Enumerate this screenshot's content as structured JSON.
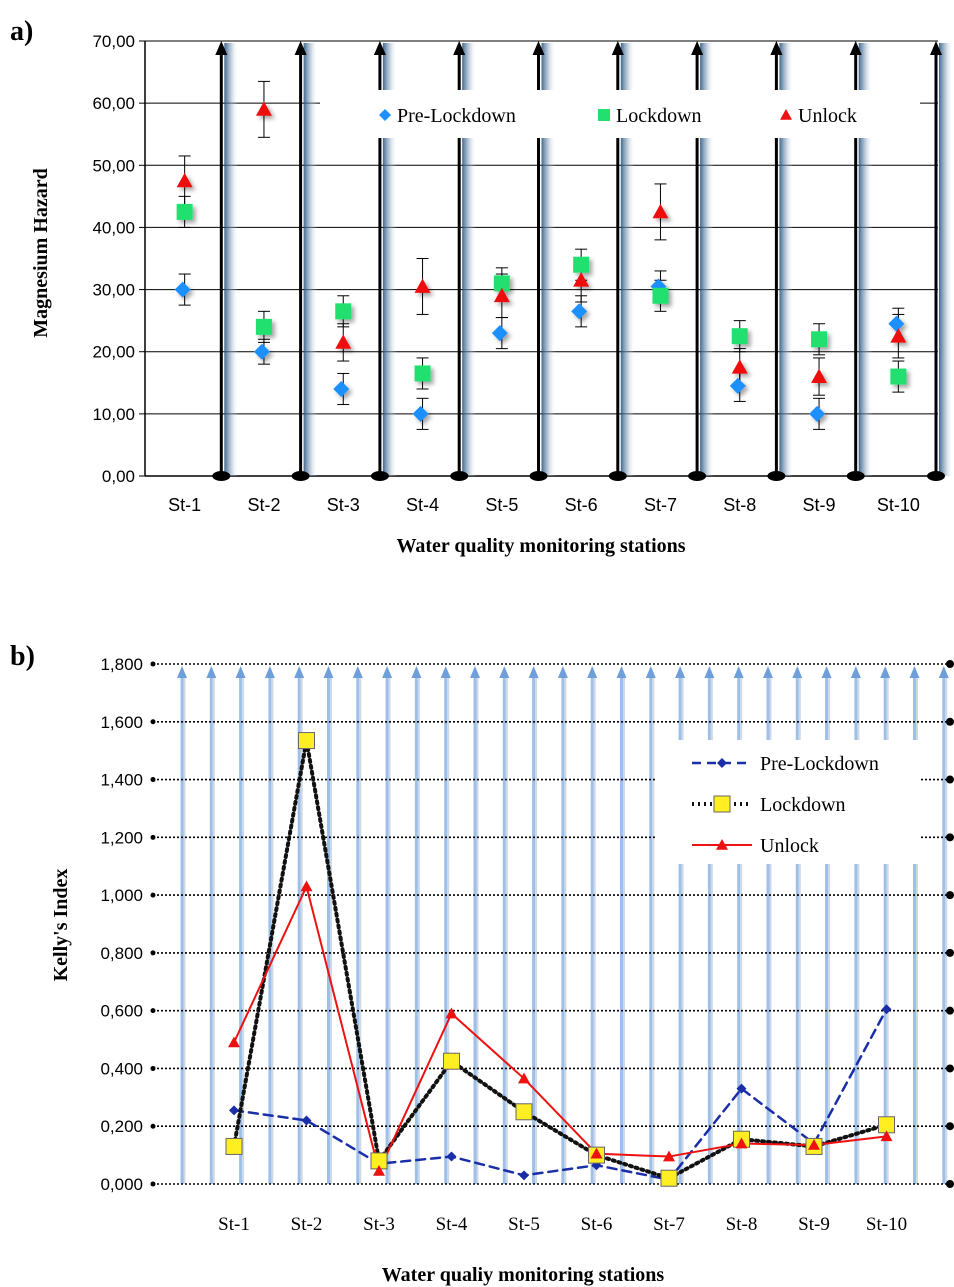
{
  "chart_data": [
    {
      "panel_label": "a)",
      "type": "scatter",
      "categories": [
        "St-1",
        "St-2",
        "St-3",
        "St-4",
        "St-5",
        "St-6",
        "St-7",
        "St-8",
        "St-9",
        "St-10"
      ],
      "series": [
        {
          "name": "Pre-Lockdown",
          "values": [
            30.0,
            20.0,
            14.0,
            10.0,
            23.0,
            26.5,
            30.5,
            14.5,
            10.0,
            24.5
          ],
          "errors": [
            2.5,
            2.0,
            2.5,
            2.5,
            2.5,
            2.5,
            2.5,
            2.5,
            2.5,
            2.5
          ],
          "color": "#1e90ff",
          "marker": "diamond"
        },
        {
          "name": "Lockdown",
          "values": [
            42.5,
            24.0,
            26.5,
            16.5,
            31.0,
            34.0,
            29.0,
            22.5,
            22.0,
            16.0
          ],
          "errors": [
            2.5,
            2.5,
            2.5,
            2.5,
            2.5,
            2.5,
            2.5,
            2.5,
            2.5,
            2.5
          ],
          "color": "#22e070",
          "marker": "square"
        },
        {
          "name": "Unlock",
          "values": [
            47.5,
            59.0,
            21.5,
            30.5,
            29.0,
            31.5,
            42.5,
            17.5,
            16.0,
            22.5
          ],
          "errors": [
            4.0,
            4.5,
            3.0,
            4.5,
            3.5,
            3.5,
            4.5,
            3.0,
            3.0,
            3.5
          ],
          "color": "#ee1111",
          "marker": "triangle"
        }
      ],
      "ytick_labels": [
        "0,00",
        "10,00",
        "20,00",
        "30,00",
        "40,00",
        "50,00",
        "60,00",
        "70,00"
      ],
      "ylim": [
        0,
        70
      ],
      "xlabel": "Water quality monitoring stations",
      "ylabel": "Magnesium Hazard",
      "grid": true,
      "legend_placement": "top"
    },
    {
      "panel_label": "b)",
      "type": "line",
      "categories": [
        "St-1",
        "St-2",
        "St-3",
        "St-4",
        "St-5",
        "St-6",
        "St-7",
        "St-8",
        "St-9",
        "St-10"
      ],
      "series": [
        {
          "name": "Pre-Lockdown",
          "values": [
            0.255,
            0.22,
            0.07,
            0.095,
            0.03,
            0.065,
            0.015,
            0.33,
            0.14,
            0.605
          ],
          "color": "#1a2ea8",
          "style": "dashed",
          "marker": "diamond"
        },
        {
          "name": "Lockdown",
          "values": [
            0.13,
            1.535,
            0.08,
            0.425,
            0.25,
            0.1,
            0.02,
            0.155,
            0.13,
            0.205
          ],
          "color": "#111111",
          "style": "dotted",
          "marker": "square"
        },
        {
          "name": "Unlock",
          "values": [
            0.49,
            1.03,
            0.045,
            0.59,
            0.365,
            0.105,
            0.095,
            0.14,
            0.135,
            0.165
          ],
          "color": "#ee1111",
          "style": "solid",
          "marker": "triangle"
        }
      ],
      "ytick_labels": [
        "0,000",
        "0,200",
        "0,400",
        "0,600",
        "0,800",
        "1,000",
        "1,200",
        "1,400",
        "1,600",
        "1,800"
      ],
      "ylim": [
        0,
        1.8
      ],
      "xlabel": "Water qualiy monitoring stations",
      "ylabel": "Kelly's Index",
      "grid": true,
      "legend_placement": "top-right"
    }
  ]
}
